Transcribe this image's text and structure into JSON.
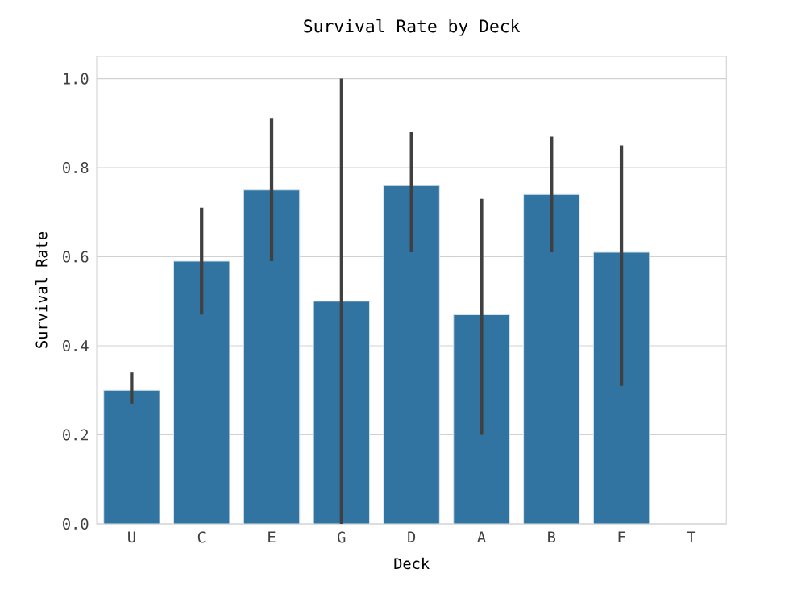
{
  "chart_data": {
    "type": "bar",
    "title": "Survival Rate by Deck",
    "xlabel": "Deck",
    "ylabel": "Survival Rate",
    "categories": [
      "U",
      "C",
      "E",
      "G",
      "D",
      "A",
      "B",
      "F",
      "T"
    ],
    "values": [
      0.3,
      0.59,
      0.75,
      0.5,
      0.76,
      0.47,
      0.74,
      0.61,
      0
    ],
    "errors": [
      [
        0.27,
        0.34
      ],
      [
        0.47,
        0.71
      ],
      [
        0.59,
        0.91
      ],
      [
        0.0,
        1.0
      ],
      [
        0.61,
        0.88
      ],
      [
        0.2,
        0.73
      ],
      [
        0.61,
        0.87
      ],
      [
        0.31,
        0.85
      ],
      null
    ],
    "color": "#3274a1",
    "ylim": [
      0,
      1.05
    ],
    "yticks": [
      {
        "value": 0,
        "label": "0.0"
      },
      0.2,
      0.4,
      0.6,
      0.8,
      {
        "value": 1,
        "label": "1.0"
      }
    ],
    "grid": "y"
  }
}
